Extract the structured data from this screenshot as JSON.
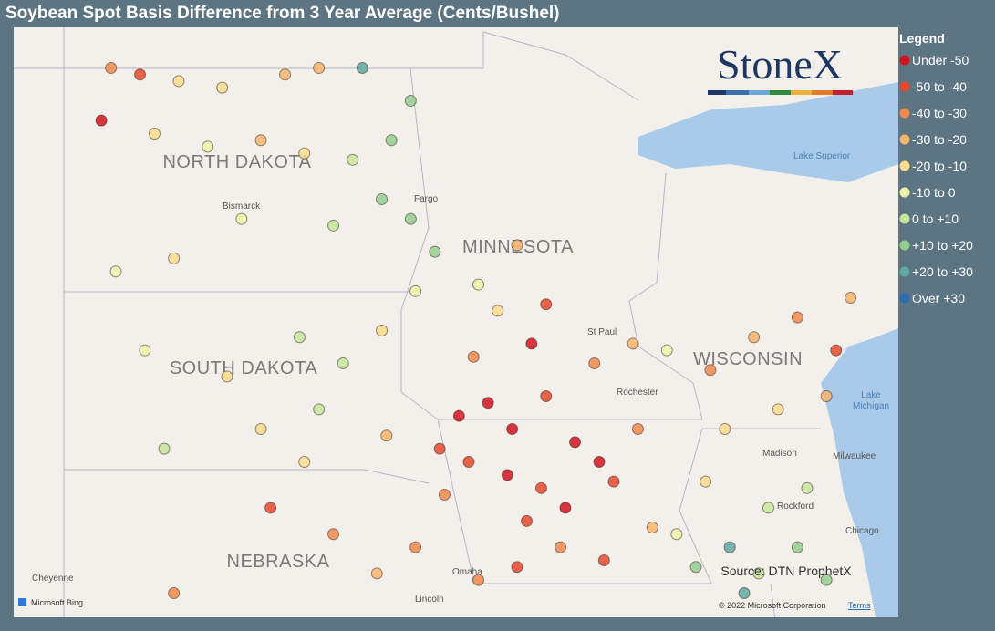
{
  "title": "Soybean Spot Basis Difference from 3 Year Average (Cents/Bushel)",
  "legend": {
    "title": "Legend",
    "items": [
      {
        "label": "Under -50",
        "color": "#d0141f"
      },
      {
        "label": "-50 to -40",
        "color": "#e5482d"
      },
      {
        "label": "-40 to -30",
        "color": "#ef8a4c"
      },
      {
        "label": "-30 to -20",
        "color": "#f6b56c"
      },
      {
        "label": "-20 to -10",
        "color": "#f9dc8c"
      },
      {
        "label": "-10 to 0",
        "color": "#eef2a9"
      },
      {
        "label": "0 to +10",
        "color": "#c6e69b"
      },
      {
        "label": "+10 to +20",
        "color": "#95cf90"
      },
      {
        "label": "+20 to +30",
        "color": "#5fa8a2"
      },
      {
        "label": "Over +30",
        "color": "#2b6cb0"
      }
    ]
  },
  "points": [
    {
      "lon": -103.2,
      "lat": 48.9,
      "class": 2
    },
    {
      "lon": -102.6,
      "lat": 48.8,
      "class": 1
    },
    {
      "lon": -101.8,
      "lat": 48.7,
      "class": 4
    },
    {
      "lon": -100.9,
      "lat": 48.6,
      "class": 4
    },
    {
      "lon": -99.6,
      "lat": 48.8,
      "class": 3
    },
    {
      "lon": -98.9,
      "lat": 48.9,
      "class": 3
    },
    {
      "lon": -103.4,
      "lat": 48.1,
      "class": 0
    },
    {
      "lon": -102.3,
      "lat": 47.9,
      "class": 4
    },
    {
      "lon": -101.2,
      "lat": 47.7,
      "class": 5
    },
    {
      "lon": -100.1,
      "lat": 47.8,
      "class": 3
    },
    {
      "lon": -99.2,
      "lat": 47.6,
      "class": 4
    },
    {
      "lon": -98.2,
      "lat": 47.5,
      "class": 6
    },
    {
      "lon": -97.4,
      "lat": 47.8,
      "class": 7
    },
    {
      "lon": -97.0,
      "lat": 48.4,
      "class": 7
    },
    {
      "lon": -98.0,
      "lat": 48.9,
      "class": 8
    },
    {
      "lon": -97.6,
      "lat": 46.9,
      "class": 7
    },
    {
      "lon": -97.0,
      "lat": 46.6,
      "class": 7
    },
    {
      "lon": -98.6,
      "lat": 46.5,
      "class": 6
    },
    {
      "lon": -100.5,
      "lat": 46.6,
      "class": 5
    },
    {
      "lon": -101.9,
      "lat": 46.0,
      "class": 4
    },
    {
      "lon": -103.1,
      "lat": 45.8,
      "class": 5
    },
    {
      "lon": -102.5,
      "lat": 44.6,
      "class": 5
    },
    {
      "lon": -100.8,
      "lat": 44.2,
      "class": 4
    },
    {
      "lon": -99.3,
      "lat": 44.8,
      "class": 6
    },
    {
      "lon": -98.4,
      "lat": 44.4,
      "class": 6
    },
    {
      "lon": -97.6,
      "lat": 44.9,
      "class": 4
    },
    {
      "lon": -96.9,
      "lat": 45.5,
      "class": 5
    },
    {
      "lon": -98.9,
      "lat": 43.7,
      "class": 6
    },
    {
      "lon": -100.1,
      "lat": 43.4,
      "class": 4
    },
    {
      "lon": -97.5,
      "lat": 43.3,
      "class": 3
    },
    {
      "lon": -99.2,
      "lat": 42.9,
      "class": 4
    },
    {
      "lon": -102.1,
      "lat": 43.1,
      "class": 6
    },
    {
      "lon": -96.5,
      "lat": 46.1,
      "class": 7
    },
    {
      "lon": -95.6,
      "lat": 45.6,
      "class": 5
    },
    {
      "lon": -94.8,
      "lat": 46.2,
      "class": 3
    },
    {
      "lon": -94.2,
      "lat": 45.3,
      "class": 1
    },
    {
      "lon": -95.2,
      "lat": 45.2,
      "class": 4
    },
    {
      "lon": -93.2,
      "lat": 44.4,
      "class": 2
    },
    {
      "lon": -92.4,
      "lat": 44.7,
      "class": 3
    },
    {
      "lon": -91.7,
      "lat": 44.6,
      "class": 5
    },
    {
      "lon": -94.5,
      "lat": 44.7,
      "class": 0
    },
    {
      "lon": -95.7,
      "lat": 44.5,
      "class": 2
    },
    {
      "lon": -96.0,
      "lat": 43.6,
      "class": 0
    },
    {
      "lon": -95.4,
      "lat": 43.8,
      "class": 0
    },
    {
      "lon": -94.9,
      "lat": 43.4,
      "class": 0
    },
    {
      "lon": -94.2,
      "lat": 43.9,
      "class": 1
    },
    {
      "lon": -93.6,
      "lat": 43.2,
      "class": 0
    },
    {
      "lon": -93.1,
      "lat": 42.9,
      "class": 0
    },
    {
      "lon": -95.8,
      "lat": 42.9,
      "class": 1
    },
    {
      "lon": -95.0,
      "lat": 42.7,
      "class": 0
    },
    {
      "lon": -94.3,
      "lat": 42.5,
      "class": 1
    },
    {
      "lon": -93.8,
      "lat": 42.2,
      "class": 0
    },
    {
      "lon": -92.8,
      "lat": 42.6,
      "class": 1
    },
    {
      "lon": -92.3,
      "lat": 43.4,
      "class": 2
    },
    {
      "lon": -96.4,
      "lat": 43.1,
      "class": 1
    },
    {
      "lon": -94.6,
      "lat": 42.0,
      "class": 1
    },
    {
      "lon": -96.3,
      "lat": 42.4,
      "class": 2
    },
    {
      "lon": -96.9,
      "lat": 41.6,
      "class": 2
    },
    {
      "lon": -95.6,
      "lat": 41.1,
      "class": 2
    },
    {
      "lon": -94.8,
      "lat": 41.3,
      "class": 1
    },
    {
      "lon": -93.9,
      "lat": 41.6,
      "class": 2
    },
    {
      "lon": -93.0,
      "lat": 41.4,
      "class": 1
    },
    {
      "lon": -92.0,
      "lat": 41.9,
      "class": 3
    },
    {
      "lon": -97.7,
      "lat": 41.2,
      "class": 3
    },
    {
      "lon": -98.6,
      "lat": 41.8,
      "class": 2
    },
    {
      "lon": -99.9,
      "lat": 42.2,
      "class": 1
    },
    {
      "lon": -101.9,
      "lat": 40.9,
      "class": 2
    },
    {
      "lon": -91.5,
      "lat": 41.8,
      "class": 5
    },
    {
      "lon": -91.1,
      "lat": 41.3,
      "class": 7
    },
    {
      "lon": -90.4,
      "lat": 41.6,
      "class": 8
    },
    {
      "lon": -89.8,
      "lat": 41.2,
      "class": 6
    },
    {
      "lon": -89.0,
      "lat": 41.6,
      "class": 7
    },
    {
      "lon": -88.4,
      "lat": 41.1,
      "class": 7
    },
    {
      "lon": -90.9,
      "lat": 42.6,
      "class": 4
    },
    {
      "lon": -89.6,
      "lat": 42.2,
      "class": 6
    },
    {
      "lon": -88.8,
      "lat": 42.5,
      "class": 6
    },
    {
      "lon": -90.1,
      "lat": 40.9,
      "class": 8
    },
    {
      "lon": -90.8,
      "lat": 44.3,
      "class": 2
    },
    {
      "lon": -89.9,
      "lat": 44.8,
      "class": 3
    },
    {
      "lon": -89.0,
      "lat": 45.1,
      "class": 2
    },
    {
      "lon": -88.2,
      "lat": 44.6,
      "class": 1
    },
    {
      "lon": -87.9,
      "lat": 45.4,
      "class": 3
    },
    {
      "lon": -90.5,
      "lat": 43.4,
      "class": 4
    },
    {
      "lon": -89.4,
      "lat": 43.7,
      "class": 4
    },
    {
      "lon": -88.4,
      "lat": 43.9,
      "class": 3
    }
  ],
  "map": {
    "states": [
      "NORTH DAKOTA",
      "MINNESOTA",
      "SOUTH DAKOTA",
      "WISCONSIN",
      "NEBRASKA"
    ],
    "cities": [
      "Bismarck",
      "Fargo",
      "St Paul",
      "Rochester",
      "Madison",
      "Milwaukee",
      "Rockford",
      "Chicago",
      "Omaha",
      "Lincoln",
      "Cheyenne"
    ],
    "lakes": [
      "Lake Superior",
      "Lake",
      "Michigan"
    ]
  },
  "logo": "StoneX",
  "source": "Source: DTN ProphetX",
  "provider": "Microsoft Bing",
  "attribution": "© 2022 Microsoft Corporation",
  "terms": "Terms"
}
